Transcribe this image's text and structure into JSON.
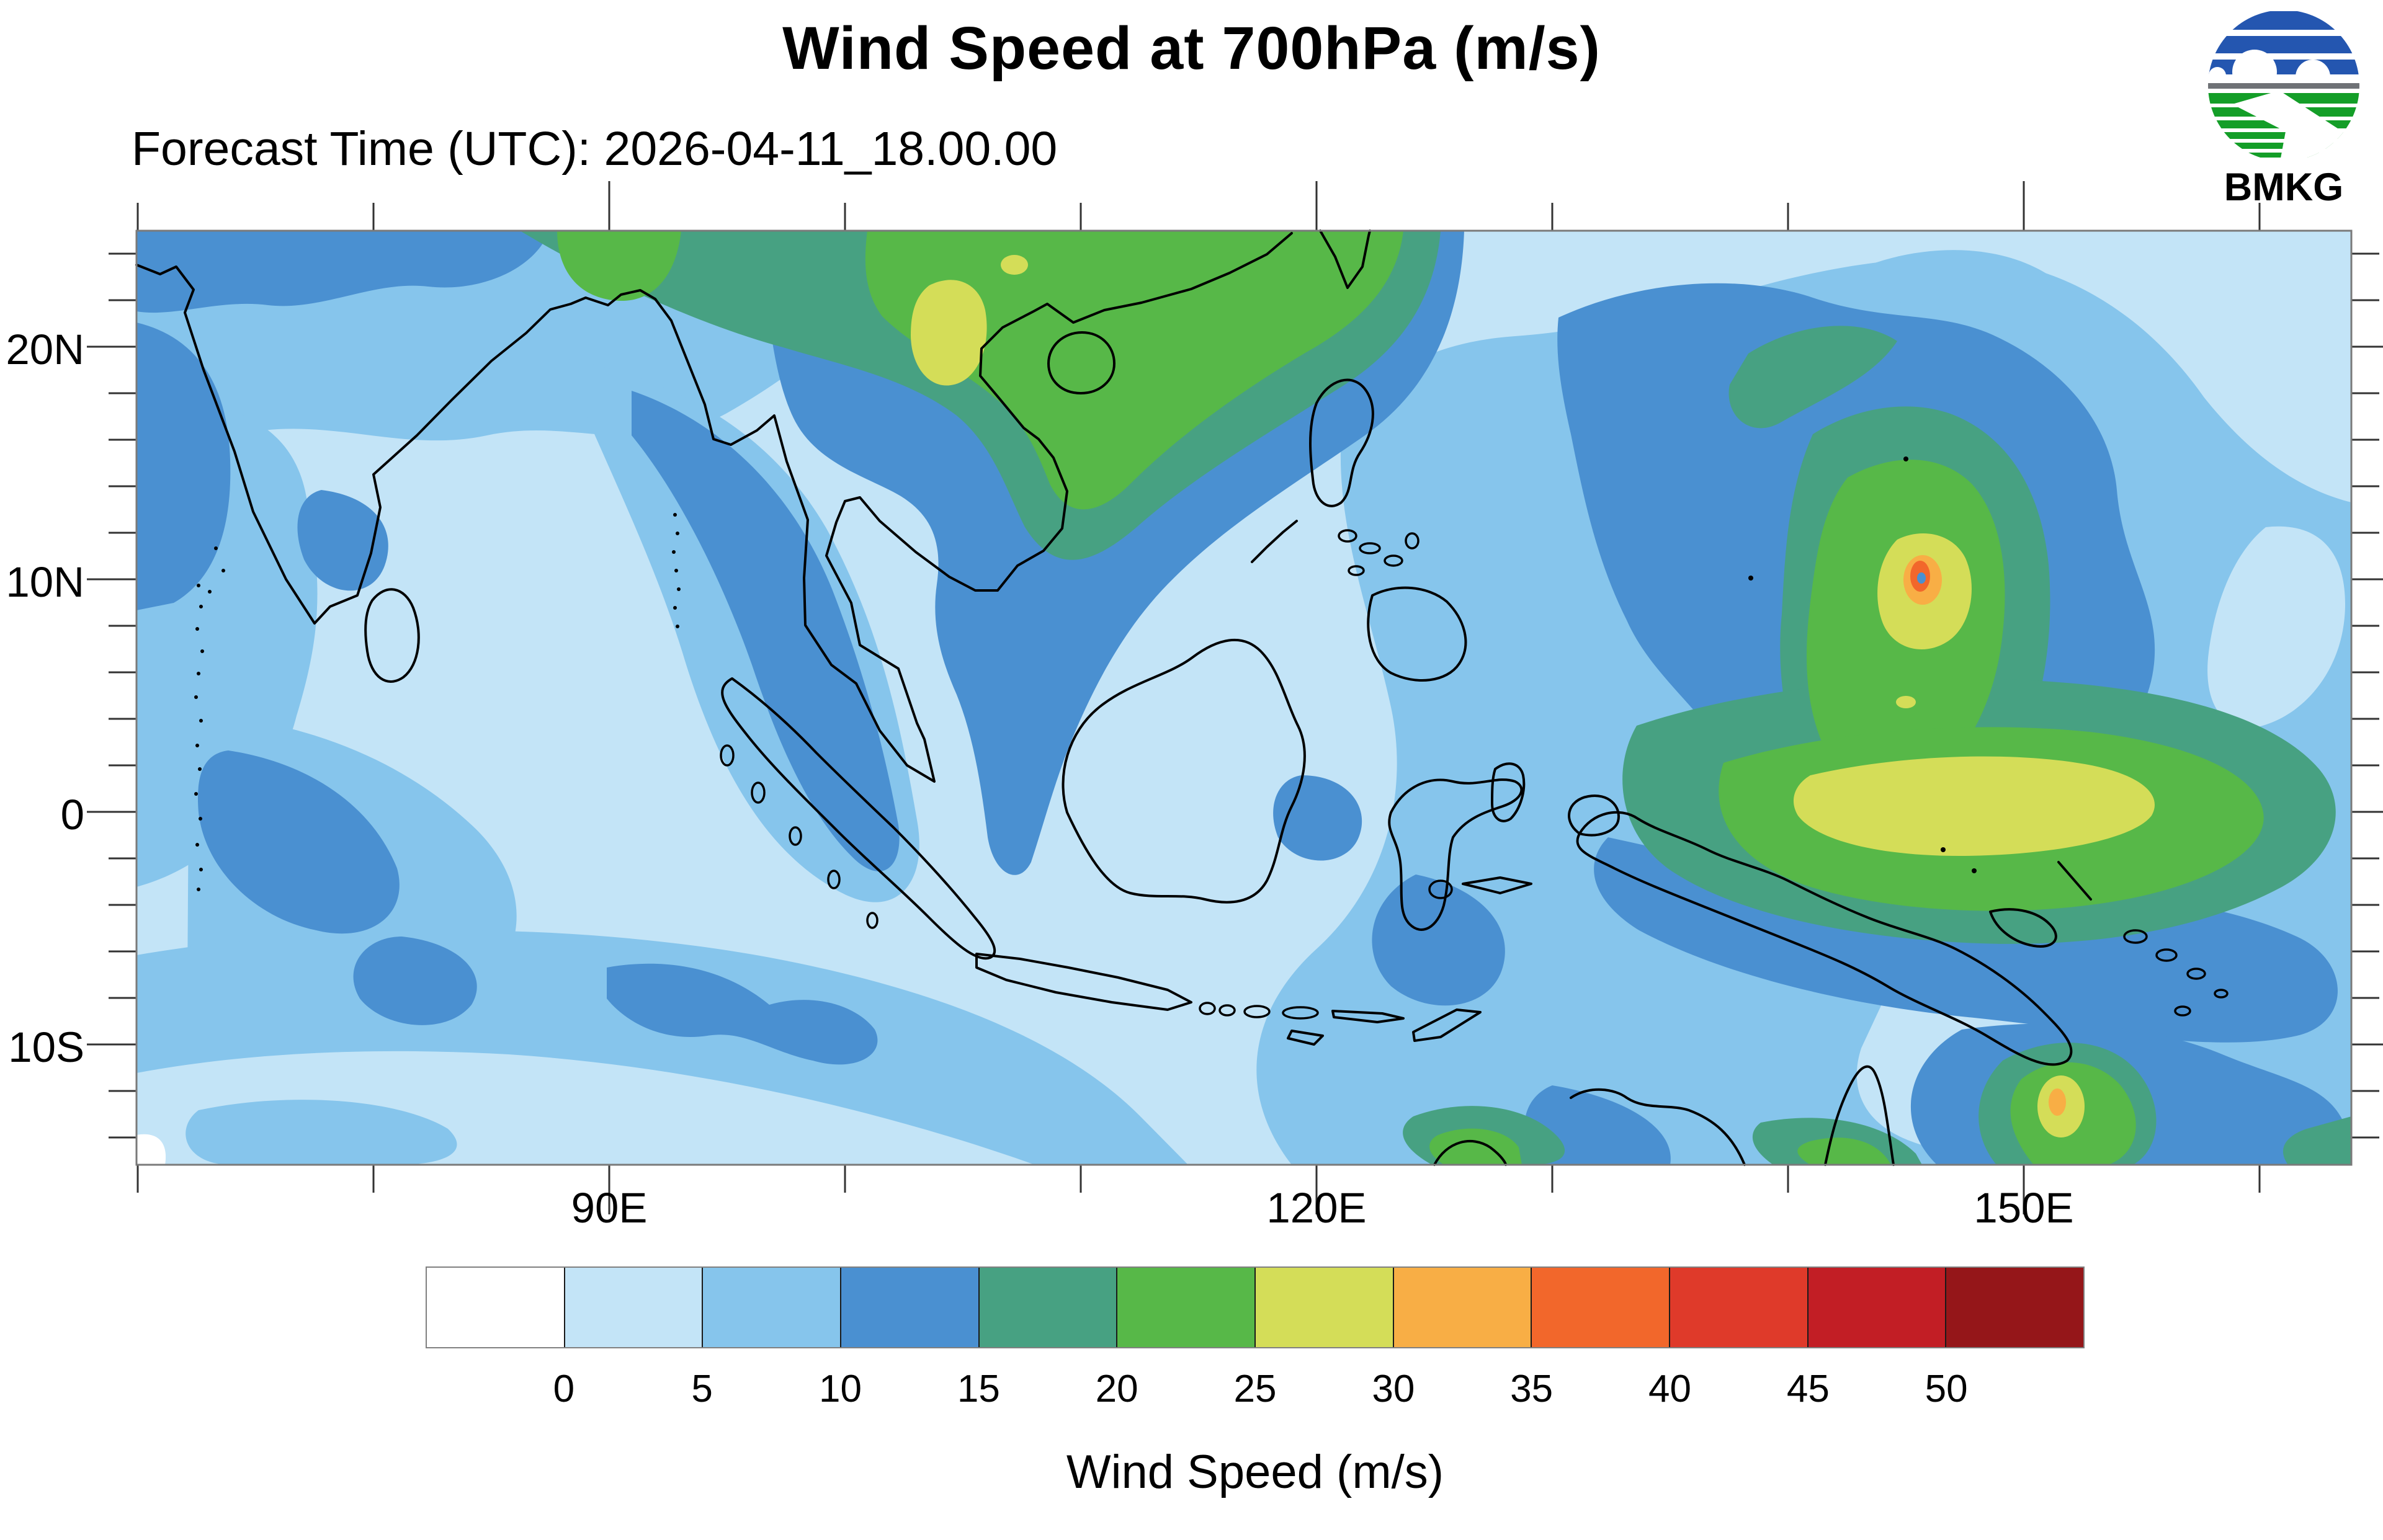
{
  "header": {
    "title": "Wind Speed at 700hPa (m/s)",
    "forecast_time": "Forecast Time (UTC): 2026-04-11_18.00.00"
  },
  "logo": {
    "text": "BMKG",
    "blue": "#2456b0",
    "green": "#149e28",
    "gray": "#6f7276"
  },
  "map": {
    "lat_labels": [
      "20N",
      "10N",
      "0",
      "10S"
    ],
    "lon_labels": [
      "90E",
      "120E",
      "150E"
    ],
    "coastline_color": "#000000",
    "border_color": "#7a7a7a",
    "tick_color": "#333333"
  },
  "colorbar": {
    "tick_labels": [
      "0",
      "5",
      "10",
      "15",
      "20",
      "25",
      "30",
      "35",
      "40",
      "45",
      "50"
    ],
    "title": "Wind Speed (m/s)",
    "segment_colors": [
      "#ffffff",
      "#c3e4f7",
      "#86c5ec",
      "#4a90d1",
      "#47a182",
      "#57b848",
      "#d4dd58",
      "#f8ae45",
      "#f2672b",
      "#df3a2a",
      "#c21e25",
      "#951619"
    ]
  }
}
